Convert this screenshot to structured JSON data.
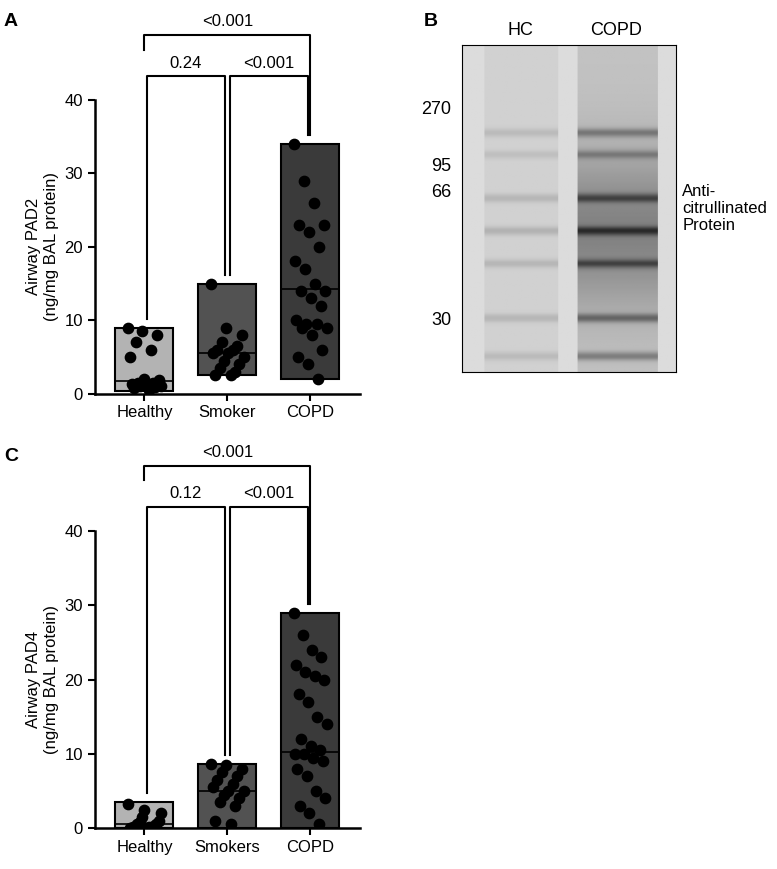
{
  "panel_labels": [
    "A",
    "B",
    "C"
  ],
  "chart_data": [
    {
      "type": "floating_bar",
      "y_label": "Airway PAD2\n(ng/mg BAL protein)",
      "categories": [
        "Healthy",
        "Smoker",
        "COPD"
      ],
      "colors": [
        "#b3b3b3",
        "#525252",
        "#3a3a3a"
      ],
      "ranges": [
        [
          0.3,
          9
        ],
        [
          2.5,
          15
        ],
        [
          2,
          34
        ]
      ],
      "medians": [
        1.7,
        5.5,
        14.3
      ],
      "points": [
        [
          9,
          8.5,
          8,
          7,
          6,
          5,
          2,
          1.8,
          1.5,
          1.5,
          1.3,
          1.2,
          1,
          1,
          0.9,
          0.8,
          0.5
        ],
        [
          15,
          9,
          8,
          7,
          6.5,
          6,
          6,
          5.5,
          5.5,
          5,
          4.5,
          4,
          3.5,
          3,
          2.5,
          2.5
        ],
        [
          34,
          29,
          26,
          23,
          23,
          22,
          20,
          18,
          17,
          15,
          14,
          14,
          13,
          12,
          10,
          9.5,
          9.5,
          9,
          9,
          8,
          6,
          5,
          4,
          2
        ]
      ],
      "ylim": [
        0,
        40
      ],
      "yticks": [
        0,
        10,
        20,
        30,
        40
      ],
      "comparisons": [
        {
          "groups": [
            "Healthy",
            "Smoker"
          ],
          "label": "0.24"
        },
        {
          "groups": [
            "Smoker",
            "COPD"
          ],
          "label": "<0.001"
        },
        {
          "groups": [
            "Healthy",
            "COPD"
          ],
          "label": "<0.001"
        }
      ]
    },
    {
      "type": "floating_bar",
      "y_label": "Airway PAD4\n(ng/mg BAL protein)",
      "categories": [
        "Healthy",
        "Smokers",
        "COPD"
      ],
      "colors": [
        "#b3b3b3",
        "#525252",
        "#3a3a3a"
      ],
      "ranges": [
        [
          0,
          3.5
        ],
        [
          0,
          8.7
        ],
        [
          0,
          29
        ]
      ],
      "medians": [
        0.5,
        5,
        10.3
      ],
      "points": [
        [
          3.3,
          2.5,
          2,
          1.5,
          1,
          0.8,
          0.5,
          0.5,
          0.3,
          0.2,
          0.2,
          0.1,
          0.1,
          0,
          0
        ],
        [
          8.7,
          8.5,
          8,
          7.5,
          7,
          6.5,
          6,
          5.5,
          5,
          5,
          4.5,
          4,
          3.5,
          3,
          1,
          0.5
        ],
        [
          29,
          26,
          24,
          23,
          22,
          21,
          20.5,
          20,
          18,
          17,
          15,
          14,
          12,
          11,
          10.5,
          10,
          10,
          9.5,
          9,
          8,
          7,
          5,
          4,
          3,
          2,
          0.5
        ]
      ],
      "ylim": [
        0,
        40
      ],
      "yticks": [
        0,
        10,
        20,
        30,
        40
      ],
      "comparisons": [
        {
          "groups": [
            "Healthy",
            "Smokers"
          ],
          "label": "0.12"
        },
        {
          "groups": [
            "Smokers",
            "COPD"
          ],
          "label": "<0.001"
        },
        {
          "groups": [
            "Healthy",
            "COPD"
          ],
          "label": "<0.001"
        }
      ]
    }
  ],
  "blot": {
    "lanes": [
      "HC",
      "COPD"
    ],
    "markers": [
      270,
      95,
      66,
      30
    ],
    "label": "Anti-\ncitrullinated\nProtein"
  }
}
